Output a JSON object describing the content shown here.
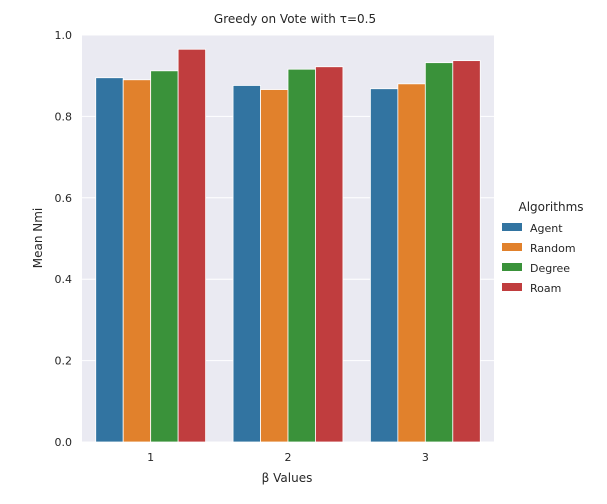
{
  "chart_data": {
    "type": "bar",
    "title": "Greedy on Vote with τ=0.5",
    "xlabel": "β Values",
    "ylabel": "Mean Nmi",
    "categories": [
      "1",
      "2",
      "3"
    ],
    "ylim": [
      0,
      1.0
    ],
    "yticks": [
      0.0,
      0.2,
      0.4,
      0.6,
      0.8,
      1.0
    ],
    "ytick_labels": [
      "0.0",
      "0.2",
      "0.4",
      "0.6",
      "0.8",
      "1.0"
    ],
    "grid": true,
    "legend": {
      "title": "Algorithms",
      "position": "right"
    },
    "series": [
      {
        "name": "Agent",
        "color": "#3274a1",
        "values": [
          0.895,
          0.876,
          0.868
        ]
      },
      {
        "name": "Random",
        "color": "#e1812c",
        "values": [
          0.89,
          0.866,
          0.88
        ]
      },
      {
        "name": "Degree",
        "color": "#3a923a",
        "values": [
          0.912,
          0.916,
          0.932
        ]
      },
      {
        "name": "Roam",
        "color": "#c03d3e",
        "values": [
          0.965,
          0.922,
          0.937
        ]
      }
    ],
    "colors": {
      "plot_background": "#eaeaf2",
      "grid": "#ffffff"
    }
  }
}
